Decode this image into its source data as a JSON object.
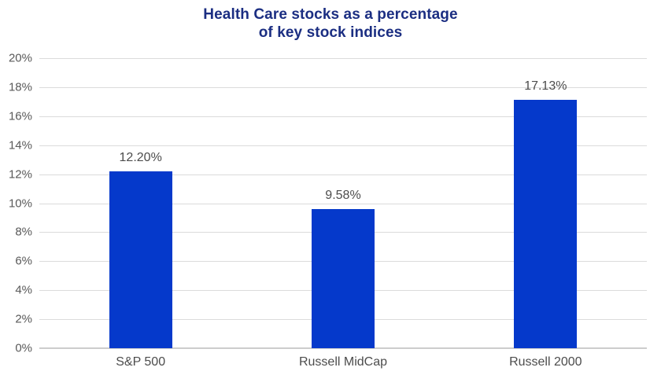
{
  "header": {
    "title_line1": "Health Care stocks as a percentage",
    "title_line2": "of key stock indices"
  },
  "chart_data": {
    "type": "bar",
    "title": "Health Care stocks as a percentage of key stock indices",
    "categories": [
      "S&P 500",
      "Russell MidCap",
      "Russell 2000"
    ],
    "values": [
      12.2,
      9.58,
      17.13
    ],
    "value_labels": [
      "12.20%",
      "9.58%",
      "17.13%"
    ],
    "xlabel": "",
    "ylabel": "",
    "ylim": [
      0,
      20
    ],
    "ytick_step": 2,
    "ytick_labels": [
      "0%",
      "2%",
      "4%",
      "6%",
      "8%",
      "10%",
      "12%",
      "14%",
      "16%",
      "18%",
      "20%"
    ],
    "grid": "horizontal",
    "legend": "none",
    "colors": {
      "bar": "#0539CB",
      "title": "#1B2E82",
      "axis_label": "#4C4C4C",
      "tick_label": "#595959",
      "gridline": "#DBDBDB",
      "baseline": "#CDCDCD"
    }
  }
}
